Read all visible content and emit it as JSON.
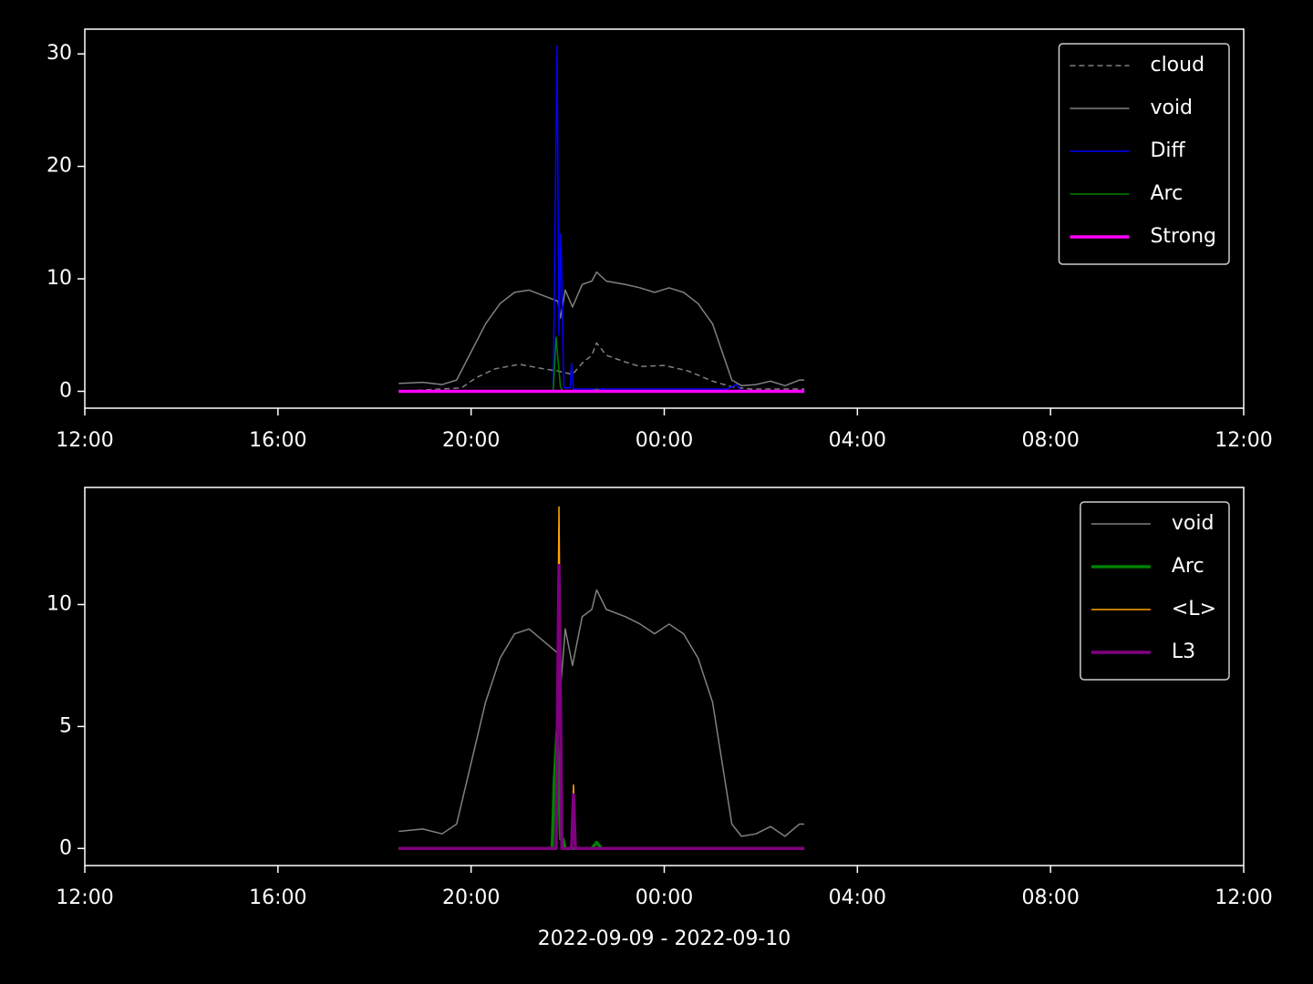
{
  "chart_data": [
    {
      "type": "line",
      "xlim": [
        12,
        36
      ],
      "ylim": [
        -1.5,
        32.2
      ],
      "xticks": [
        {
          "value": 12,
          "label": "12:00"
        },
        {
          "value": 16,
          "label": "16:00"
        },
        {
          "value": 20,
          "label": "20:00"
        },
        {
          "value": 24,
          "label": "00:00"
        },
        {
          "value": 28,
          "label": "04:00"
        },
        {
          "value": 32,
          "label": "08:00"
        },
        {
          "value": 36,
          "label": "12:00"
        }
      ],
      "yticks": [
        0,
        10,
        20,
        30
      ],
      "legend": "upper right",
      "series": [
        {
          "name": "cloud",
          "color": "#808080",
          "style": "dashed",
          "width": 1.5,
          "x": [
            18.5,
            19.8,
            20.1,
            20.5,
            21.0,
            21.5,
            21.8,
            22.1,
            22.3,
            22.5,
            22.6,
            22.8,
            23.2,
            23.5,
            24.0,
            24.5,
            25.0,
            25.4,
            25.8,
            26.9
          ],
          "values": [
            0,
            0.3,
            1.2,
            2.0,
            2.4,
            2.0,
            1.8,
            1.5,
            2.5,
            3.2,
            4.3,
            3.2,
            2.6,
            2.2,
            2.3,
            1.8,
            0.9,
            0.4,
            0.2,
            0.2
          ]
        },
        {
          "name": "void",
          "color": "#808080",
          "style": "solid",
          "width": 1.5,
          "x": [
            18.5,
            19.0,
            19.4,
            19.7,
            20.0,
            20.3,
            20.6,
            20.9,
            21.2,
            21.5,
            21.8,
            21.85,
            21.95,
            22.1,
            22.3,
            22.5,
            22.6,
            22.8,
            23.2,
            23.5,
            23.8,
            24.1,
            24.4,
            24.7,
            25.0,
            25.2,
            25.4,
            25.6,
            25.9,
            26.2,
            26.5,
            26.8,
            26.9
          ],
          "values": [
            0.7,
            0.8,
            0.6,
            1.0,
            3.5,
            6.0,
            7.8,
            8.8,
            9.0,
            8.5,
            8.0,
            6.5,
            9.0,
            7.5,
            9.5,
            9.8,
            10.6,
            9.8,
            9.5,
            9.2,
            8.8,
            9.2,
            8.8,
            7.8,
            6.0,
            3.5,
            1.0,
            0.5,
            0.6,
            0.9,
            0.5,
            1.0,
            1.0
          ]
        },
        {
          "name": "Diff",
          "color": "#0000ff",
          "style": "solid",
          "width": 1.5,
          "x": [
            18.5,
            21.7,
            21.78,
            21.82,
            21.86,
            21.92,
            22.05,
            22.08,
            22.12,
            25.3,
            25.5,
            25.6,
            26.9
          ],
          "values": [
            0,
            0,
            30.7,
            5,
            14,
            0.3,
            0.3,
            2.5,
            0.2,
            0.2,
            0.6,
            0,
            0
          ]
        },
        {
          "name": "Arc",
          "color": "#008000",
          "style": "solid",
          "width": 1.5,
          "x": [
            18.5,
            21.7,
            21.76,
            21.8,
            21.85,
            21.9,
            22.5,
            22.6,
            22.7,
            26.9
          ],
          "values": [
            0,
            0,
            4.8,
            2.8,
            0.4,
            0,
            0,
            0.2,
            0,
            0
          ]
        },
        {
          "name": "Strong",
          "color": "#ff00ff",
          "style": "solid",
          "width": 3.5,
          "x": [
            18.5,
            26.9
          ],
          "values": [
            0,
            0
          ]
        }
      ]
    },
    {
      "type": "line",
      "xlim": [
        12,
        36
      ],
      "ylim": [
        -0.7,
        14.8
      ],
      "xlabel": "2022-09-09 - 2022-09-10",
      "xticks": [
        {
          "value": 12,
          "label": "12:00"
        },
        {
          "value": 16,
          "label": "16:00"
        },
        {
          "value": 20,
          "label": "20:00"
        },
        {
          "value": 24,
          "label": "00:00"
        },
        {
          "value": 28,
          "label": "04:00"
        },
        {
          "value": 32,
          "label": "08:00"
        },
        {
          "value": 36,
          "label": "12:00"
        }
      ],
      "yticks": [
        0,
        5,
        10
      ],
      "legend": "upper right",
      "series": [
        {
          "name": "void",
          "color": "#808080",
          "style": "solid",
          "width": 1.5,
          "x": [
            18.5,
            19.0,
            19.4,
            19.7,
            20.0,
            20.3,
            20.6,
            20.9,
            21.2,
            21.5,
            21.8,
            21.85,
            21.95,
            22.1,
            22.3,
            22.5,
            22.6,
            22.8,
            23.2,
            23.5,
            23.8,
            24.1,
            24.4,
            24.7,
            25.0,
            25.2,
            25.4,
            25.6,
            25.9,
            26.2,
            26.5,
            26.8,
            26.9
          ],
          "values": [
            0.7,
            0.8,
            0.6,
            1.0,
            3.5,
            6.0,
            7.8,
            8.8,
            9.0,
            8.5,
            8.0,
            6.5,
            9.0,
            7.5,
            9.5,
            9.8,
            10.6,
            9.8,
            9.5,
            9.2,
            8.8,
            9.2,
            8.8,
            7.8,
            6.0,
            3.5,
            1.0,
            0.5,
            0.6,
            0.9,
            0.5,
            1.0,
            1.0
          ]
        },
        {
          "name": "Arc",
          "color": "#008000",
          "style": "solid",
          "width": 3.5,
          "x": [
            18.5,
            21.68,
            21.72,
            21.78,
            21.85,
            21.9,
            21.95,
            22.5,
            22.6,
            22.7,
            26.9
          ],
          "values": [
            0,
            0,
            2.7,
            4.8,
            0.4,
            0.4,
            0,
            0,
            0.25,
            0,
            0
          ]
        },
        {
          "name": "<L>",
          "color": "#ffa500",
          "style": "solid",
          "width": 1.5,
          "x": [
            18.5,
            21.76,
            21.82,
            21.88,
            22.08,
            22.12,
            22.16,
            26.9
          ],
          "values": [
            0,
            0,
            14,
            0,
            0,
            2.6,
            0,
            0
          ]
        },
        {
          "name": "L3",
          "color": "#800080",
          "style": "solid",
          "width": 3.5,
          "x": [
            18.5,
            21.76,
            21.82,
            21.88,
            22.08,
            22.12,
            22.16,
            26.9
          ],
          "values": [
            0,
            0,
            11.6,
            0,
            0,
            2.2,
            0,
            0
          ]
        }
      ]
    }
  ]
}
